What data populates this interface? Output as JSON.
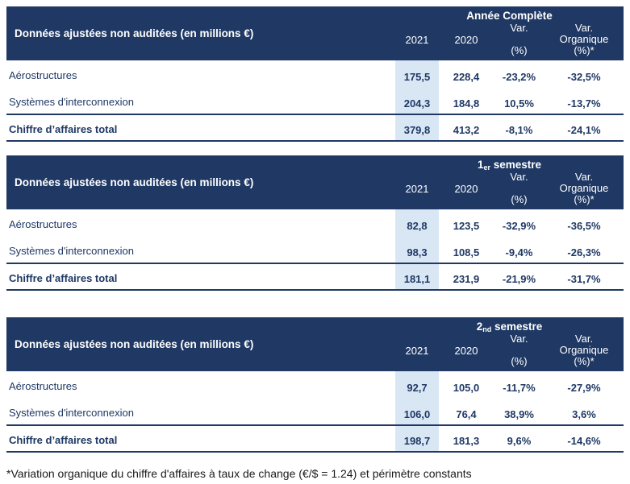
{
  "colors": {
    "header_bg": "#1f3864",
    "table_text": "#1f3864",
    "highlight_2021_column": "#d9e7f5",
    "divider": "#1f3864",
    "footnote_text": "#1a1a1a"
  },
  "columns": {
    "label_header": "Données ajustées non auditées (en millions €)",
    "year1": "2021",
    "year2": "2020",
    "var_line1": "Var.",
    "var_line2": "(%)",
    "varorg_line1": "Var.",
    "varorg_line2": "Organique",
    "varorg_line3": "(%)*"
  },
  "tables": [
    {
      "period": {
        "num": "Année Complète",
        "sup": "",
        "rest": ""
      },
      "rows": [
        {
          "label": "Aérostructures",
          "v2021": "175,5",
          "v2020": "228,4",
          "var": "-23,2%",
          "var_org": "-32,5%"
        },
        {
          "label": "Systèmes d'interconnexion",
          "v2021": "204,3",
          "v2020": "184,8",
          "var": "10,5%",
          "var_org": "-13,7%"
        }
      ],
      "total": {
        "label": "Chiffre d’affaires total",
        "v2021": "379,8",
        "v2020": "413,2",
        "var": "-8,1%",
        "var_org": "-24,1%"
      }
    },
    {
      "period": {
        "num": "1",
        "sup": "er",
        "rest": " semestre"
      },
      "rows": [
        {
          "label": "Aérostructures",
          "v2021": "82,8",
          "v2020": "123,5",
          "var": "-32,9%",
          "var_org": "-36,5%"
        },
        {
          "label": "Systèmes d'interconnexion",
          "v2021": "98,3",
          "v2020": "108,5",
          "var": "-9,4%",
          "var_org": "-26,3%"
        }
      ],
      "total": {
        "label": "Chiffre d’affaires total",
        "v2021": "181,1",
        "v2020": "231,9",
        "var": "-21,9%",
        "var_org": "-31,7%"
      }
    },
    {
      "period": {
        "num": "2",
        "sup": "nd",
        "rest": " semestre"
      },
      "rows": [
        {
          "label": "Aérostructures",
          "v2021": "92,7",
          "v2020": "105,0",
          "var": "-11,7%",
          "var_org": "-27,9%"
        },
        {
          "label": "Systèmes d'interconnexion",
          "v2021": "106,0",
          "v2020": "76,4",
          "var": "38,9%",
          "var_org": "3,6%"
        }
      ],
      "total": {
        "label": "Chiffre d’affaires total",
        "v2021": "198,7",
        "v2020": "181,3",
        "var": "9,6%",
        "var_org": "-14,6%"
      }
    }
  ],
  "footnote": "*Variation organique du chiffre d'affaires à taux de change (€/$ = 1.24) et périmètre constants"
}
